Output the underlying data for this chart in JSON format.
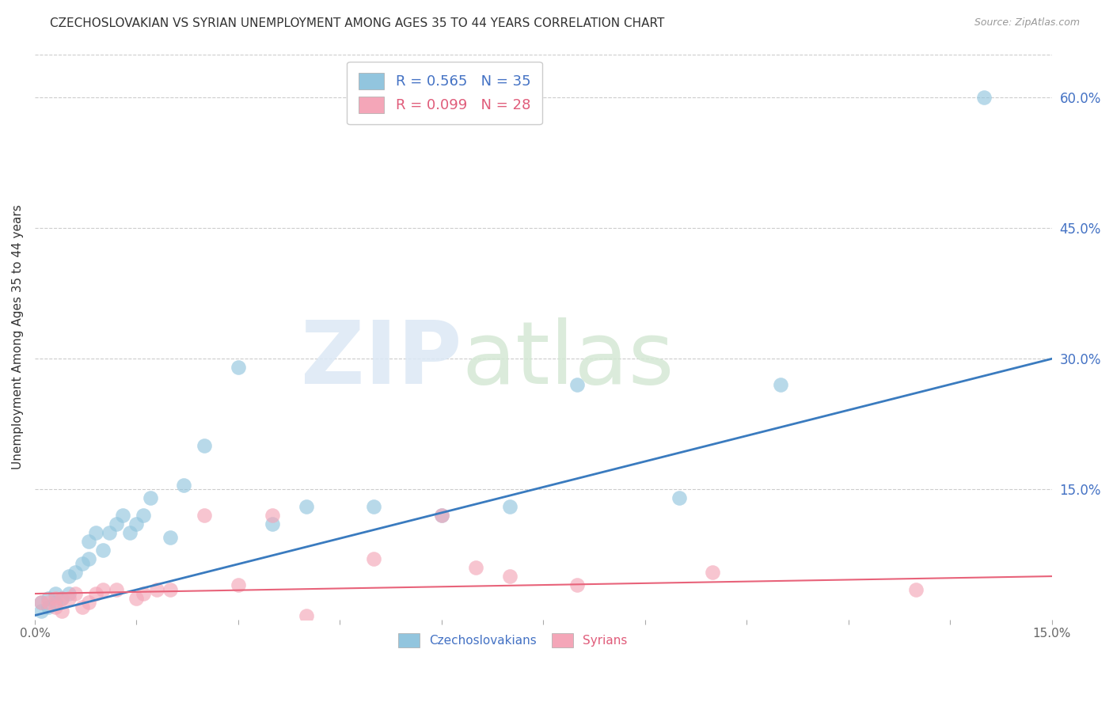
{
  "title": "CZECHOSLOVAKIAN VS SYRIAN UNEMPLOYMENT AMONG AGES 35 TO 44 YEARS CORRELATION CHART",
  "source": "Source: ZipAtlas.com",
  "ylabel": "Unemployment Among Ages 35 to 44 years",
  "xlim": [
    0,
    0.15
  ],
  "ylim": [
    0,
    0.65
  ],
  "right_yticks": [
    0.0,
    0.15,
    0.3,
    0.45,
    0.6
  ],
  "right_yticklabels": [
    "",
    "15.0%",
    "30.0%",
    "45.0%",
    "60.0%"
  ],
  "czech_color": "#92c5de",
  "syrian_color": "#f4a6b8",
  "czech_line_color": "#3a7bbf",
  "syrian_line_color": "#e8637a",
  "czech_R": 0.565,
  "czech_N": 35,
  "syrian_R": 0.099,
  "syrian_N": 28,
  "background_color": "#ffffff",
  "czech_x": [
    0.001,
    0.001,
    0.002,
    0.002,
    0.003,
    0.003,
    0.004,
    0.005,
    0.005,
    0.006,
    0.007,
    0.008,
    0.008,
    0.009,
    0.01,
    0.011,
    0.012,
    0.013,
    0.014,
    0.015,
    0.016,
    0.017,
    0.02,
    0.022,
    0.025,
    0.03,
    0.035,
    0.04,
    0.05,
    0.06,
    0.07,
    0.08,
    0.095,
    0.11,
    0.14
  ],
  "czech_y": [
    0.01,
    0.02,
    0.015,
    0.025,
    0.02,
    0.03,
    0.025,
    0.03,
    0.05,
    0.055,
    0.065,
    0.07,
    0.09,
    0.1,
    0.08,
    0.1,
    0.11,
    0.12,
    0.1,
    0.11,
    0.12,
    0.14,
    0.095,
    0.155,
    0.2,
    0.29,
    0.11,
    0.13,
    0.13,
    0.12,
    0.13,
    0.27,
    0.14,
    0.27,
    0.6
  ],
  "syrian_x": [
    0.001,
    0.002,
    0.003,
    0.003,
    0.004,
    0.004,
    0.005,
    0.006,
    0.007,
    0.008,
    0.009,
    0.01,
    0.012,
    0.015,
    0.016,
    0.018,
    0.02,
    0.025,
    0.03,
    0.035,
    0.04,
    0.05,
    0.06,
    0.065,
    0.07,
    0.08,
    0.1,
    0.13
  ],
  "syrian_y": [
    0.02,
    0.02,
    0.025,
    0.015,
    0.025,
    0.01,
    0.025,
    0.03,
    0.015,
    0.02,
    0.03,
    0.035,
    0.035,
    0.025,
    0.03,
    0.035,
    0.035,
    0.12,
    0.04,
    0.12,
    0.005,
    0.07,
    0.12,
    0.06,
    0.05,
    0.04,
    0.055,
    0.035
  ],
  "line_czech_x0": 0.0,
  "line_czech_y0": 0.005,
  "line_czech_x1": 0.15,
  "line_czech_y1": 0.3,
  "line_syrian_x0": 0.0,
  "line_syrian_y0": 0.03,
  "line_syrian_x1": 0.15,
  "line_syrian_y1": 0.05
}
